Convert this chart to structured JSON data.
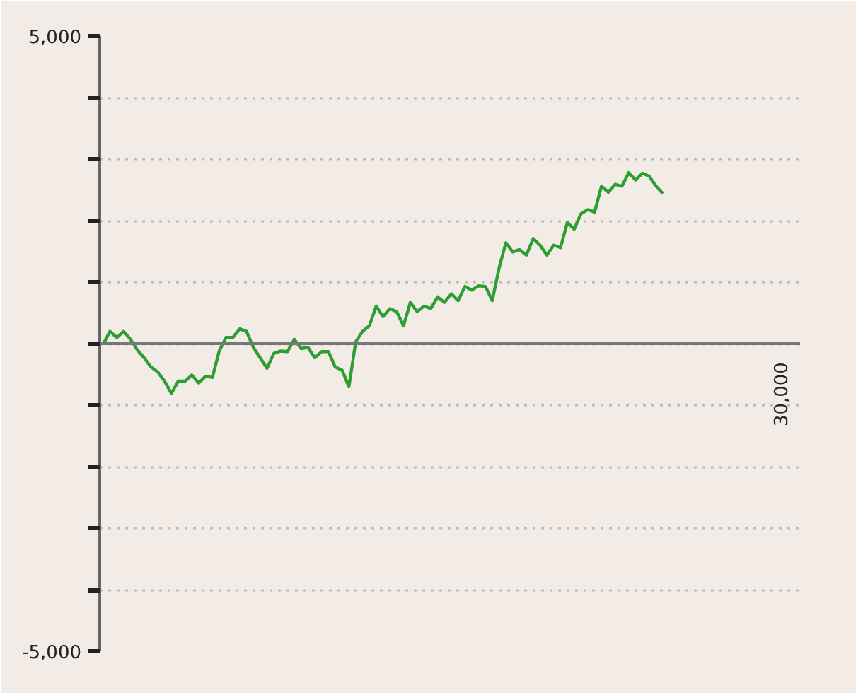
{
  "chart_data": {
    "type": "line",
    "categories": [
      null,
      null,
      null,
      null,
      null,
      null,
      null,
      null,
      null,
      null,
      null,
      null,
      null,
      null,
      null,
      null,
      null,
      null,
      null,
      null,
      null,
      null,
      null,
      null,
      null,
      null,
      null,
      null,
      null,
      null,
      null,
      null,
      null,
      null,
      null,
      null,
      null,
      null,
      null,
      null,
      null,
      null,
      null,
      null,
      null,
      null,
      null,
      null,
      null,
      null,
      null,
      null,
      null,
      null,
      null,
      null,
      null,
      null,
      null,
      null,
      null,
      null,
      null,
      null,
      null,
      null,
      null,
      null,
      null,
      null,
      null,
      null,
      null,
      null,
      null,
      null,
      null,
      null,
      null,
      null,
      null,
      null,
      null
    ],
    "series": [
      {
        "color": "#2e9e32",
        "values": [
          -10,
          200,
          100,
          200,
          70,
          -100,
          -230,
          -380,
          -460,
          -610,
          -810,
          -610,
          -610,
          -510,
          -640,
          -530,
          -550,
          -120,
          100,
          100,
          240,
          200,
          -60,
          -230,
          -400,
          -160,
          -120,
          -130,
          70,
          -80,
          -60,
          -230,
          -130,
          -130,
          -380,
          -430,
          -700,
          30,
          200,
          290,
          610,
          440,
          570,
          520,
          290,
          670,
          520,
          610,
          570,
          760,
          670,
          810,
          700,
          930,
          870,
          940,
          930,
          700,
          1230,
          1640,
          1490,
          1530,
          1440,
          1710,
          1600,
          1440,
          1600,
          1560,
          1970,
          1860,
          2110,
          2180,
          2140,
          2560,
          2460,
          2590,
          2560,
          2780,
          2660,
          2770,
          2720,
          2560,
          2440
        ]
      }
    ],
    "ylim": [
      -5000,
      5000
    ],
    "yticks": [
      {
        "value": -5000,
        "label": "-5,000"
      },
      {
        "value": -4000,
        "label": null
      },
      {
        "value": -3000,
        "label": null
      },
      {
        "value": -2000,
        "label": null
      },
      {
        "value": -1000,
        "label": null
      },
      {
        "value": 0,
        "label": null
      },
      {
        "value": 1000,
        "label": null
      },
      {
        "value": 2000,
        "label": null
      },
      {
        "value": 3000,
        "label": null
      },
      {
        "value": 4000,
        "label": null
      },
      {
        "value": 5000,
        "label": "5,000"
      }
    ],
    "annotations": [
      "30,000"
    ],
    "ref_lines": [
      {
        "axis": "y",
        "value": 0,
        "color": "#777777"
      }
    ],
    "grid": "y",
    "marker": "none",
    "line_style": "solid"
  }
}
